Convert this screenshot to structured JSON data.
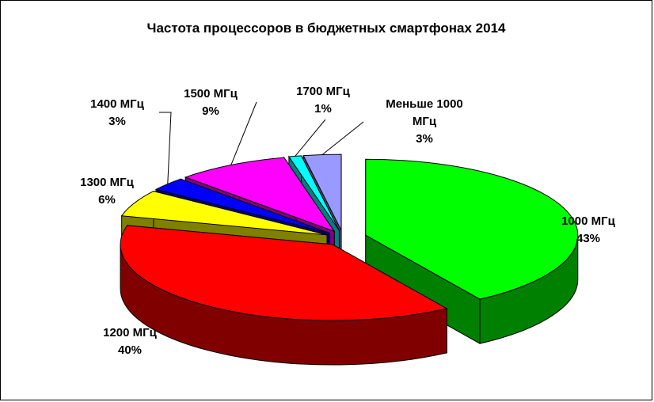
{
  "chart_data": {
    "type": "pie",
    "title": "Частота процессоров в бюджетных смартфонах 2014",
    "slices": [
      {
        "label_lines": [
          "1000 МГц",
          "43%"
        ],
        "value": 43,
        "color": "#00FF00",
        "side_color": "#008000"
      },
      {
        "label_lines": [
          "1200 МГц",
          "40%"
        ],
        "value": 40,
        "color": "#FF0000",
        "side_color": "#800000"
      },
      {
        "label_lines": [
          "1300 МГц",
          "6%"
        ],
        "value": 6,
        "color": "#FFFF00",
        "side_color": "#808000"
      },
      {
        "label_lines": [
          "1400 МГц",
          "3%"
        ],
        "value": 3,
        "color": "#0000FF",
        "side_color": "#000080"
      },
      {
        "label_lines": [
          "1500 МГц",
          "9%"
        ],
        "value": 9,
        "color": "#FF00FF",
        "side_color": "#800080"
      },
      {
        "label_lines": [
          "1700 МГц",
          "1%"
        ],
        "value": 1,
        "color": "#00FFFF",
        "side_color": "#008080"
      },
      {
        "label_lines": [
          "Меньше 1000",
          "МГц",
          "3%"
        ],
        "value": 3,
        "color": "#9999FF",
        "side_color": "#4D4D80"
      }
    ]
  }
}
